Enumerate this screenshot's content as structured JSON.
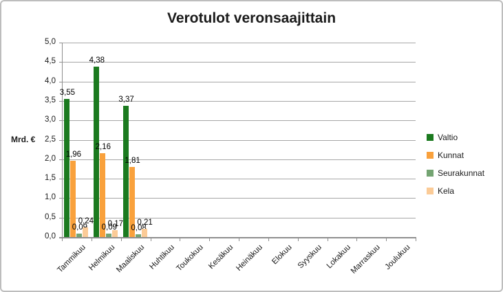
{
  "colors": {
    "gridline": "#A6A6A6",
    "axis": "#8E8E8E",
    "frame_border": "#BDBDBD",
    "text": "#1a1a1a"
  },
  "chart_data": {
    "type": "bar",
    "title": "Verotulot veronsaajittain",
    "xlabel": "",
    "ylabel": "Mrd. €",
    "ylim": [
      0,
      5
    ],
    "ytick_step": 0.5,
    "yticks_top_down": [
      "5,0",
      "4,5",
      "4,0",
      "3,5",
      "3,0",
      "2,5",
      "2,0",
      "1,5",
      "1,0",
      "0,5",
      "0,0"
    ],
    "grid": true,
    "legend_position": "right",
    "categories": [
      "Tammikuu",
      "Helmikuu",
      "Maaliskuu",
      "Huhtikuu",
      "Toukokuu",
      "Kesäkuu",
      "Heinäkuu",
      "Elokuu",
      "Syyskuu",
      "Lokakuu",
      "Marraskuu",
      "Joulukuu"
    ],
    "series": [
      {
        "name": "Valtio",
        "color": "#1B7A1F",
        "values": [
          3.55,
          4.38,
          3.37
        ],
        "labels": [
          "3,55",
          "4,38",
          "3,37"
        ]
      },
      {
        "name": "Kunnat",
        "color": "#F9A13C",
        "values": [
          1.96,
          2.16,
          1.81
        ],
        "labels": [
          "1,96",
          "2,16",
          "1,81"
        ]
      },
      {
        "name": "Seurakunnat",
        "color": "#74A472",
        "values": [
          0.09,
          0.09,
          0.08
        ],
        "labels": [
          "0,09",
          "0,09",
          "0,08"
        ]
      },
      {
        "name": "Kela",
        "color": "#FBCB97",
        "values": [
          0.24,
          0.17,
          0.21
        ],
        "labels": [
          "0,24",
          "0,17",
          "0,21"
        ]
      }
    ]
  }
}
